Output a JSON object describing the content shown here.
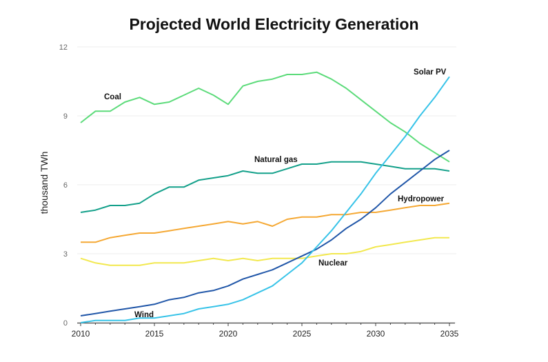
{
  "chart_data": {
    "type": "line",
    "title": "Projected World Electricity Generation",
    "xlabel": "",
    "ylabel": "thousand TWh",
    "xlim": [
      2010,
      2035
    ],
    "ylim": [
      0,
      12
    ],
    "xticks": [
      2010,
      2015,
      2020,
      2025,
      2030,
      2035
    ],
    "yticks": [
      0,
      3,
      6,
      9,
      12
    ],
    "grid": true,
    "x": [
      2010,
      2011,
      2012,
      2013,
      2014,
      2015,
      2016,
      2017,
      2018,
      2019,
      2020,
      2021,
      2022,
      2023,
      2024,
      2025,
      2026,
      2027,
      2028,
      2029,
      2030,
      2031,
      2032,
      2033,
      2034,
      2035
    ],
    "series": [
      {
        "name": "Coal",
        "color": "#5cdb7a",
        "values": [
          8.7,
          9.2,
          9.2,
          9.6,
          9.8,
          9.5,
          9.6,
          9.9,
          10.2,
          9.9,
          9.5,
          10.3,
          10.5,
          10.6,
          10.8,
          10.8,
          10.9,
          10.6,
          10.2,
          9.7,
          9.2,
          8.7,
          8.3,
          7.8,
          7.4,
          7.0
        ]
      },
      {
        "name": "Natural gas",
        "color": "#13a08a",
        "values": [
          4.8,
          4.9,
          5.1,
          5.1,
          5.2,
          5.6,
          5.9,
          5.9,
          6.2,
          6.3,
          6.4,
          6.6,
          6.5,
          6.5,
          6.7,
          6.9,
          6.9,
          7.0,
          7.0,
          7.0,
          6.9,
          6.8,
          6.7,
          6.7,
          6.7,
          6.6
        ]
      },
      {
        "name": "Hydropower",
        "color": "#f5a833",
        "values": [
          3.5,
          3.5,
          3.7,
          3.8,
          3.9,
          3.9,
          4.0,
          4.1,
          4.2,
          4.3,
          4.4,
          4.3,
          4.4,
          4.2,
          4.5,
          4.6,
          4.6,
          4.7,
          4.7,
          4.8,
          4.8,
          4.9,
          5.0,
          5.1,
          5.1,
          5.2
        ]
      },
      {
        "name": "Nuclear",
        "color": "#f2e84e",
        "values": [
          2.8,
          2.6,
          2.5,
          2.5,
          2.5,
          2.6,
          2.6,
          2.6,
          2.7,
          2.8,
          2.7,
          2.8,
          2.7,
          2.8,
          2.8,
          2.8,
          2.9,
          3.0,
          3.0,
          3.1,
          3.3,
          3.4,
          3.5,
          3.6,
          3.7,
          3.7
        ]
      },
      {
        "name": "Wind",
        "color": "#2056a8",
        "values": [
          0.3,
          0.4,
          0.5,
          0.6,
          0.7,
          0.8,
          1.0,
          1.1,
          1.3,
          1.4,
          1.6,
          1.9,
          2.1,
          2.3,
          2.6,
          2.9,
          3.2,
          3.6,
          4.1,
          4.5,
          5.0,
          5.6,
          6.1,
          6.6,
          7.1,
          7.5
        ]
      },
      {
        "name": "Solar PV",
        "color": "#37c3e8",
        "values": [
          0.0,
          0.1,
          0.1,
          0.1,
          0.2,
          0.2,
          0.3,
          0.4,
          0.6,
          0.7,
          0.8,
          1.0,
          1.3,
          1.6,
          2.1,
          2.6,
          3.3,
          4.0,
          4.8,
          5.6,
          6.5,
          7.3,
          8.1,
          9.0,
          9.8,
          10.7
        ]
      }
    ]
  }
}
